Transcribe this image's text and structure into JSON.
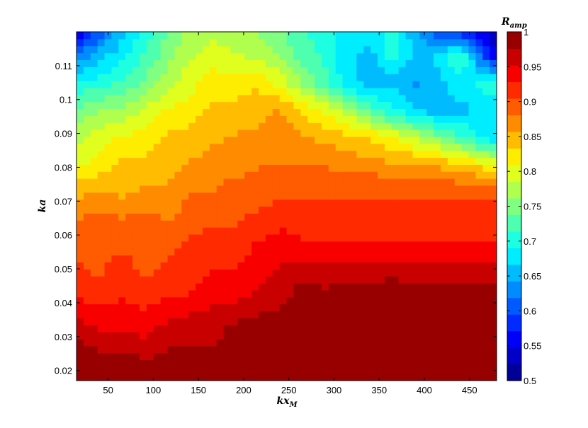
{
  "chart_data": {
    "type": "heatmap",
    "subtype": "filled-contour",
    "xlabel": {
      "main": "kx",
      "sub": "M"
    },
    "ylabel": "ka",
    "colorbar_label": {
      "main": "R",
      "sub": "amp"
    },
    "colormap": "jet",
    "xlim": [
      15,
      480
    ],
    "ylim": [
      0.017,
      0.12
    ],
    "clim": [
      0.5,
      1.0
    ],
    "xticks": [
      50,
      100,
      150,
      200,
      250,
      300,
      350,
      400,
      450
    ],
    "xtick_labels": [
      "50",
      "100",
      "150",
      "200",
      "250",
      "300",
      "350",
      "400",
      "450"
    ],
    "yticks": [
      0.02,
      0.03,
      0.04,
      0.05,
      0.06,
      0.07,
      0.08,
      0.09,
      0.1,
      0.11
    ],
    "ytick_labels": [
      "0.02",
      "0.03",
      "0.04",
      "0.05",
      "0.06",
      "0.07",
      "0.08",
      "0.09",
      "0.1",
      "0.11"
    ],
    "cticks": [
      0.5,
      0.55,
      0.6,
      0.65,
      0.7,
      0.75,
      0.8,
      0.85,
      0.9,
      0.95,
      1.0
    ],
    "ctick_labels": [
      "0.5",
      "0.55",
      "0.6",
      "0.65",
      "0.7",
      "0.75",
      "0.8",
      "0.85",
      "0.9",
      "0.95",
      "1"
    ],
    "levels": 21,
    "grid": false,
    "x": [
      15,
      40,
      65,
      90,
      115,
      140,
      165,
      190,
      215,
      240,
      265,
      290,
      315,
      340,
      365,
      390,
      415,
      440,
      465,
      480
    ],
    "y": [
      0.017,
      0.025,
      0.033,
      0.041,
      0.049,
      0.057,
      0.065,
      0.073,
      0.081,
      0.089,
      0.097,
      0.105,
      0.113,
      0.12
    ],
    "z": [
      [
        1.0,
        1.0,
        1.0,
        1.0,
        1.0,
        1.0,
        1.0,
        1.0,
        1.0,
        1.0,
        1.0,
        1.0,
        1.0,
        1.0,
        1.0,
        1.0,
        1.0,
        1.0,
        1.0,
        1.0
      ],
      [
        1.0,
        0.98,
        0.98,
        0.97,
        0.98,
        0.98,
        0.98,
        0.98,
        0.99,
        0.99,
        1.0,
        1.0,
        1.0,
        1.0,
        1.0,
        1.0,
        1.0,
        1.0,
        1.0,
        1.0
      ],
      [
        0.96,
        0.95,
        0.95,
        0.94,
        0.96,
        0.97,
        0.97,
        0.98,
        0.99,
        0.99,
        0.99,
        1.0,
        1.0,
        1.0,
        1.0,
        1.0,
        1.0,
        1.0,
        1.0,
        1.0
      ],
      [
        0.93,
        0.92,
        0.93,
        0.92,
        0.93,
        0.93,
        0.95,
        0.95,
        0.96,
        0.97,
        0.99,
        0.99,
        1.0,
        1.0,
        1.0,
        1.0,
        1.0,
        1.0,
        1.0,
        1.0
      ],
      [
        0.91,
        0.9,
        0.92,
        0.9,
        0.91,
        0.92,
        0.93,
        0.93,
        0.94,
        0.96,
        0.97,
        0.96,
        0.96,
        0.96,
        0.97,
        0.96,
        0.96,
        0.96,
        0.96,
        0.97
      ],
      [
        0.9,
        0.9,
        0.9,
        0.89,
        0.9,
        0.91,
        0.92,
        0.92,
        0.93,
        0.94,
        0.93,
        0.93,
        0.93,
        0.93,
        0.93,
        0.93,
        0.93,
        0.93,
        0.93,
        0.93
      ],
      [
        0.88,
        0.89,
        0.88,
        0.89,
        0.88,
        0.89,
        0.9,
        0.9,
        0.91,
        0.92,
        0.92,
        0.92,
        0.92,
        0.92,
        0.92,
        0.92,
        0.92,
        0.92,
        0.92,
        0.92
      ],
      [
        0.85,
        0.86,
        0.85,
        0.86,
        0.86,
        0.88,
        0.88,
        0.89,
        0.89,
        0.9,
        0.9,
        0.9,
        0.9,
        0.9,
        0.9,
        0.9,
        0.9,
        0.9,
        0.9,
        0.9
      ],
      [
        0.8,
        0.82,
        0.84,
        0.84,
        0.85,
        0.86,
        0.87,
        0.87,
        0.88,
        0.88,
        0.88,
        0.88,
        0.87,
        0.87,
        0.86,
        0.86,
        0.85,
        0.84,
        0.82,
        0.8
      ],
      [
        0.78,
        0.8,
        0.81,
        0.82,
        0.84,
        0.84,
        0.85,
        0.86,
        0.86,
        0.87,
        0.86,
        0.85,
        0.84,
        0.83,
        0.81,
        0.78,
        0.75,
        0.72,
        0.68,
        0.66
      ],
      [
        0.74,
        0.76,
        0.77,
        0.79,
        0.81,
        0.82,
        0.84,
        0.84,
        0.85,
        0.86,
        0.83,
        0.8,
        0.77,
        0.73,
        0.69,
        0.67,
        0.65,
        0.66,
        0.67,
        0.68
      ],
      [
        0.7,
        0.7,
        0.72,
        0.74,
        0.78,
        0.8,
        0.82,
        0.82,
        0.83,
        0.8,
        0.76,
        0.72,
        0.68,
        0.65,
        0.66,
        0.64,
        0.66,
        0.68,
        0.7,
        0.7
      ],
      [
        0.62,
        0.66,
        0.68,
        0.72,
        0.75,
        0.78,
        0.8,
        0.79,
        0.78,
        0.76,
        0.73,
        0.71,
        0.67,
        0.66,
        0.7,
        0.66,
        0.67,
        0.72,
        0.6,
        0.55
      ],
      [
        0.55,
        0.6,
        0.66,
        0.7,
        0.74,
        0.77,
        0.78,
        0.77,
        0.76,
        0.74,
        0.72,
        0.7,
        0.68,
        0.68,
        0.7,
        0.65,
        0.6,
        0.58,
        0.55,
        0.52
      ]
    ]
  }
}
